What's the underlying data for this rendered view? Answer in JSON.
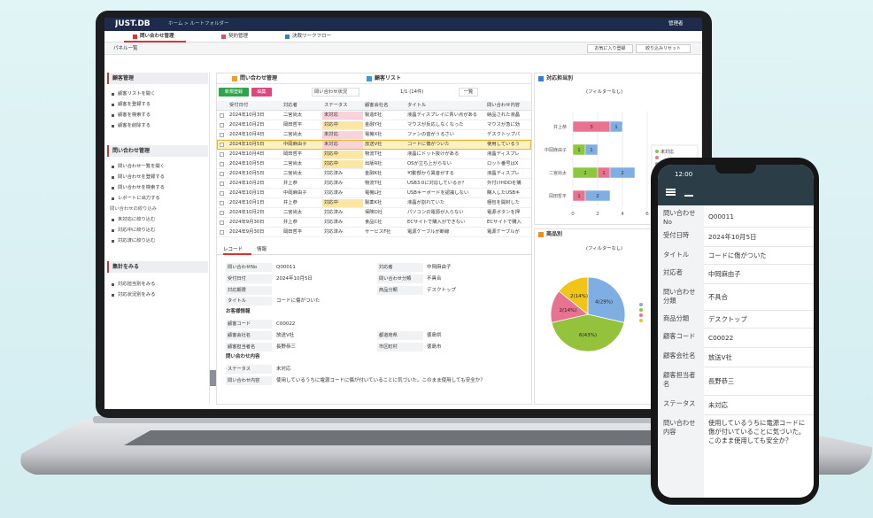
{
  "header": {
    "logo": "JUST.DB",
    "breadcrumb": "ホーム > ルートフォルダー",
    "user": "管理者"
  },
  "tabs": [
    "問い合わせ管理",
    "契約管理",
    "決裁ワークフロー"
  ],
  "panel_bar": {
    "title": "パネル一覧",
    "buttons": [
      "お気に入り登録",
      "絞り込みリセット"
    ]
  },
  "sidebar": [
    {
      "title": "顧客管理",
      "items": [
        "顧客リストを開く",
        "顧客を登録する",
        "顧客を検索する",
        "顧客を削除する"
      ]
    },
    {
      "title": "問い合わせ管理",
      "items": [
        "問い合わせ一覧を開く",
        "問い合わせを登録する",
        "問い合わせを検索する",
        "レポートに出力する"
      ],
      "subtitle": "問い合わせの絞り込み",
      "sub_items": [
        "未対応に絞り込む",
        "対応中に絞り込む",
        "対応済に絞り込む"
      ]
    },
    {
      "title": "集計をみる",
      "items": [
        "対応担当別をみる",
        "対応状況別をみる"
      ]
    }
  ],
  "main_panel": {
    "tabs": [
      "問い合わせ管理",
      "顧客リスト"
    ],
    "toolbar": {
      "new": "新規登録",
      "edit": "編集",
      "view": "問い合わせ状況",
      "pager": "1/1 (14件)",
      "list": "一覧"
    },
    "columns": [
      "受付日付",
      "対応者",
      "ステータス",
      "顧客会社名",
      "タイトル",
      "問い合わせ内容"
    ],
    "selected_row": 3,
    "rows": [
      {
        "cells": [
          "2024年10月3日",
          "二宮尚太",
          "未対応",
          "製造E社",
          "液晶ディスプレイに青い点がある",
          "納品された液晶"
        ],
        "status_color": "#f8d4da"
      },
      {
        "cells": [
          "2024年10月2日",
          "岡田哲平",
          "対応中",
          "金融Y社",
          "マウスが反応しなくなった",
          "マウスが急に効"
        ],
        "status_color": "#fbe7a3"
      },
      {
        "cells": [
          "2024年10月4日",
          "二宮尚太",
          "未対応",
          "電機X社",
          "ファンの音がうるさい",
          "デスクトップパ"
        ],
        "status_color": "#f8d4da"
      },
      {
        "cells": [
          "2024年10月5日",
          "中岡麻由子",
          "未対応",
          "放送V社",
          "コードに傷がついた",
          "使用しているう"
        ],
        "status_color": "#f8d4da"
      },
      {
        "cells": [
          "2024年10月4日",
          "岡田哲平",
          "対応中",
          "物流T社",
          "液晶にドット抜けがある",
          "液晶ディスプレ"
        ],
        "status_color": "#fbe7a3"
      },
      {
        "cells": [
          "2024年10月5日",
          "二宮尚太",
          "対応中",
          "出版R社",
          "OSが立ち上がらない",
          "ロット番号はX"
        ],
        "status_color": "#fbe7a3"
      },
      {
        "cells": [
          "2024年10月5日",
          "二宮尚太",
          "対応済み",
          "金融K社",
          "可動部から異音がする",
          "液晶ディスプレ"
        ]
      },
      {
        "cells": [
          "2024年10月2日",
          "井上恭",
          "対応済み",
          "物流T社",
          "USB3.0に対応しているか？",
          "外付けHDDを購"
        ]
      },
      {
        "cells": [
          "2024年10月1日",
          "中岡麻由子",
          "対応済み",
          "電機L社",
          "USBキーボードを認識しない",
          "購入したUSBキ"
        ]
      },
      {
        "cells": [
          "2024年10月1日",
          "井上恭",
          "対応中",
          "製薬K社",
          "液晶が割れていた",
          "梱包を開封した"
        ],
        "status_color": "#fbe7a3"
      },
      {
        "cells": [
          "2024年10月2日",
          "二宮尚太",
          "対応済み",
          "保険D社",
          "パソコンの電源が入らない",
          "電源ボタンを押"
        ]
      },
      {
        "cells": [
          "2024年9月30日",
          "井上恭",
          "対応済み",
          "食品C社",
          "ECサイトで購入ができない",
          "ECサイトで購入"
        ]
      },
      {
        "cells": [
          "2024年9月30日",
          "岡田哲平",
          "対応済み",
          "サービスF社",
          "電源ケーブルが断線",
          "電源ケーブルが"
        ]
      }
    ]
  },
  "detail": {
    "tabs": [
      "レコード",
      "情報"
    ],
    "form": [
      {
        "label": "問い合わせNo",
        "value": "Q00011",
        "right_label": "対応者",
        "right_value": "中岡麻由子"
      },
      {
        "label": "受付日付",
        "value": "2024年10月5日",
        "right_label": "問い合わせ分類",
        "right_value": "不具合"
      },
      {
        "label": "対応期限",
        "right_label": "商品分類",
        "right_value": "デスクトップ"
      },
      {
        "label": "タイトル",
        "value": "コードに傷がついた"
      },
      {
        "heading": "お客様情報"
      },
      {
        "label": "顧客コード",
        "value": "C00022"
      },
      {
        "label": "顧客会社名",
        "value": "放送V社",
        "right_label": "都道府県",
        "right_value": "徳島県"
      },
      {
        "label": "顧客担当者名",
        "value": "長野恭三",
        "right_label": "市区町村",
        "right_value": "徳島市"
      },
      {
        "heading": "問い合わせ内容"
      },
      {
        "label": "ステータス",
        "value": "未対応"
      },
      {
        "label": "問い合わせ内容",
        "value": "使用しているうちに電源コードに傷が付いていることに気づいた。このまま使用しても安全か？"
      }
    ]
  },
  "charts": [
    {
      "type": "bar",
      "orientation": "horizontal",
      "stacked": true,
      "title": "対応担当別",
      "filter": "(フィルターなし)",
      "categories": [
        "井上恭",
        "中岡麻由子",
        "二宮尚太",
        "岡田哲平"
      ],
      "series": [
        {
          "name": "未対応",
          "color": "#8dc63f",
          "values": [
            0,
            1,
            2,
            0
          ]
        },
        {
          "color": "#e8728f",
          "values": [
            3,
            0,
            1,
            1
          ]
        },
        {
          "color": "#7faee3",
          "values": [
            1,
            1,
            2,
            2
          ]
        }
      ],
      "xlim": [
        0,
        6
      ],
      "xticks": [
        0,
        2,
        4,
        6
      ],
      "grid": true
    },
    {
      "type": "pie",
      "title": "商品別",
      "filter": "(フィルターなし)",
      "values": [
        4,
        6,
        2,
        2
      ],
      "value_labels": [
        "4(29%)",
        "6(43%)",
        "2(14%)",
        "2(14%)"
      ],
      "colors": [
        "#7faee3",
        "#94c23c",
        "#e8728f",
        "#f2c418"
      ]
    }
  ],
  "phone": {
    "time": "12:00",
    "fields": [
      {
        "label": "問い合わせNo",
        "value": "Q00011"
      },
      {
        "label": "受付日時",
        "value": "2024年10月5日"
      },
      {
        "label": "タイトル",
        "value": "コードに傷がついた"
      },
      {
        "label": "対応者",
        "value": "中岡麻由子"
      },
      {
        "label": "問い合わせ分類",
        "value": "不具合"
      },
      {
        "label": "商品分類",
        "value": "デスクトップ"
      },
      {
        "label": "顧客コード",
        "value": "C00022"
      },
      {
        "label": "顧客会社名",
        "value": "放送V社"
      },
      {
        "label": "顧客担当者名",
        "value": "長野恭三"
      },
      {
        "label": "ステータス",
        "value": "未対応"
      },
      {
        "label": "問い合わせ内容",
        "value": "使用しているうちに電源コードに傷が付いていることに気づいた。このまま使用しても安全か？"
      }
    ]
  }
}
